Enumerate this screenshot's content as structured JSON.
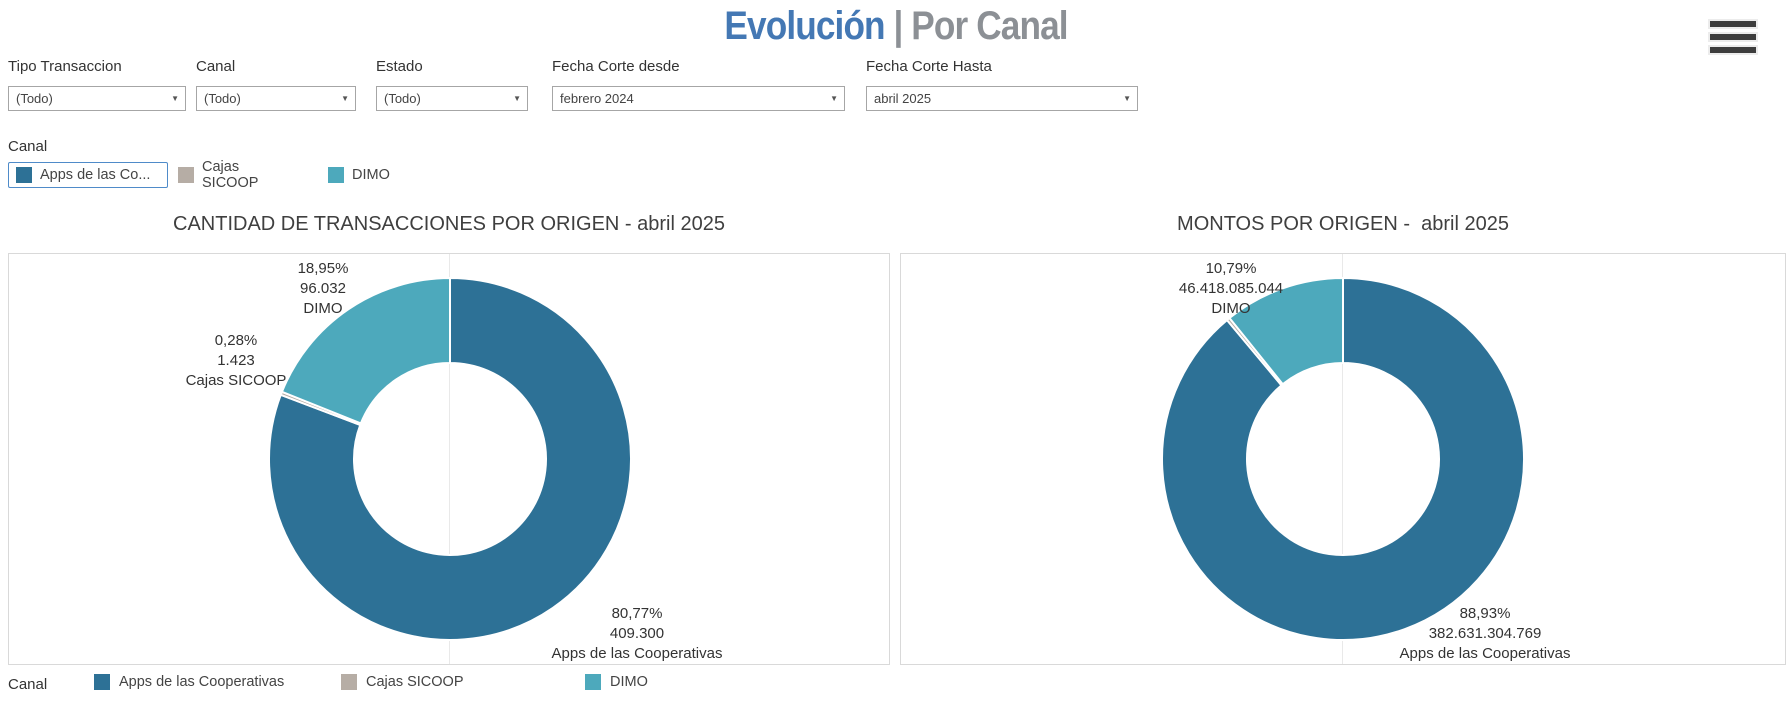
{
  "header": {
    "title_primary": "Evolución",
    "title_separator": "|",
    "title_secondary": "Por Canal",
    "menu_icon": "hamburger-icon"
  },
  "filters": [
    {
      "label": "Tipo Transaccion",
      "value": "(Todo)"
    },
    {
      "label": "Canal",
      "value": "(Todo)"
    },
    {
      "label": "Estado",
      "value": "(Todo)"
    },
    {
      "label": "Fecha Corte desde",
      "value": "febrero 2024"
    },
    {
      "label": "Fecha Corte Hasta",
      "value": "abril 2025"
    }
  ],
  "canal_legend": {
    "title": "Canal",
    "items": [
      {
        "label": "Apps de las Co...",
        "color": "#2D7196",
        "selected": true
      },
      {
        "label": "Cajas SICOOP",
        "color": "#B6ADA5",
        "selected": false
      },
      {
        "label": "DIMO",
        "color": "#4DA9BC",
        "selected": false
      }
    ]
  },
  "bottom_legend": {
    "title": "Canal",
    "items": [
      {
        "label": "Apps de las Cooperativas",
        "color": "#2D7196"
      },
      {
        "label": "Cajas SICOOP",
        "color": "#B6ADA5"
      },
      {
        "label": "DIMO",
        "color": "#4DA9BC"
      }
    ]
  },
  "colors": {
    "apps": "#2D7196",
    "cajas": "#B6ADA5",
    "dimo": "#4DA9BC",
    "title_primary": "#4478B4",
    "title_secondary": "#8C9095",
    "selected_legend_border": "#4F8BC9"
  },
  "chart_data": [
    {
      "type": "donut",
      "title": "CANTIDAD DE TRANSACCIONES POR ORIGEN - abril 2025",
      "legend_position": "bottom",
      "slices": [
        {
          "name": "Apps de las Cooperativas",
          "percent": 80.77,
          "percent_label": "80,77%",
          "value": 409300,
          "value_label": "409.300",
          "color": "#2D7196"
        },
        {
          "name": "Cajas SICOOP",
          "percent": 0.28,
          "percent_label": "0,28%",
          "value": 1423,
          "value_label": "1.423",
          "color": "#B6ADA5"
        },
        {
          "name": "DIMO",
          "percent": 18.95,
          "percent_label": "18,95%",
          "value": 96032,
          "value_label": "96.032",
          "color": "#4DA9BC"
        }
      ]
    },
    {
      "type": "donut",
      "title": "MONTOS POR ORIGEN -  abril 2025",
      "legend_position": "bottom",
      "slices": [
        {
          "name": "Apps de las Cooperativas",
          "percent": 88.93,
          "percent_label": "88,93%",
          "value": 382631304769,
          "value_label": "382.631.304.769",
          "color": "#2D7196"
        },
        {
          "name": "Cajas SICOOP",
          "percent": 0.28,
          "color": "#B6ADA5"
        },
        {
          "name": "DIMO",
          "percent": 10.79,
          "percent_label": "10,79%",
          "value": 46418085044,
          "value_label": "46.418.085.044",
          "color": "#4DA9BC"
        }
      ]
    }
  ]
}
